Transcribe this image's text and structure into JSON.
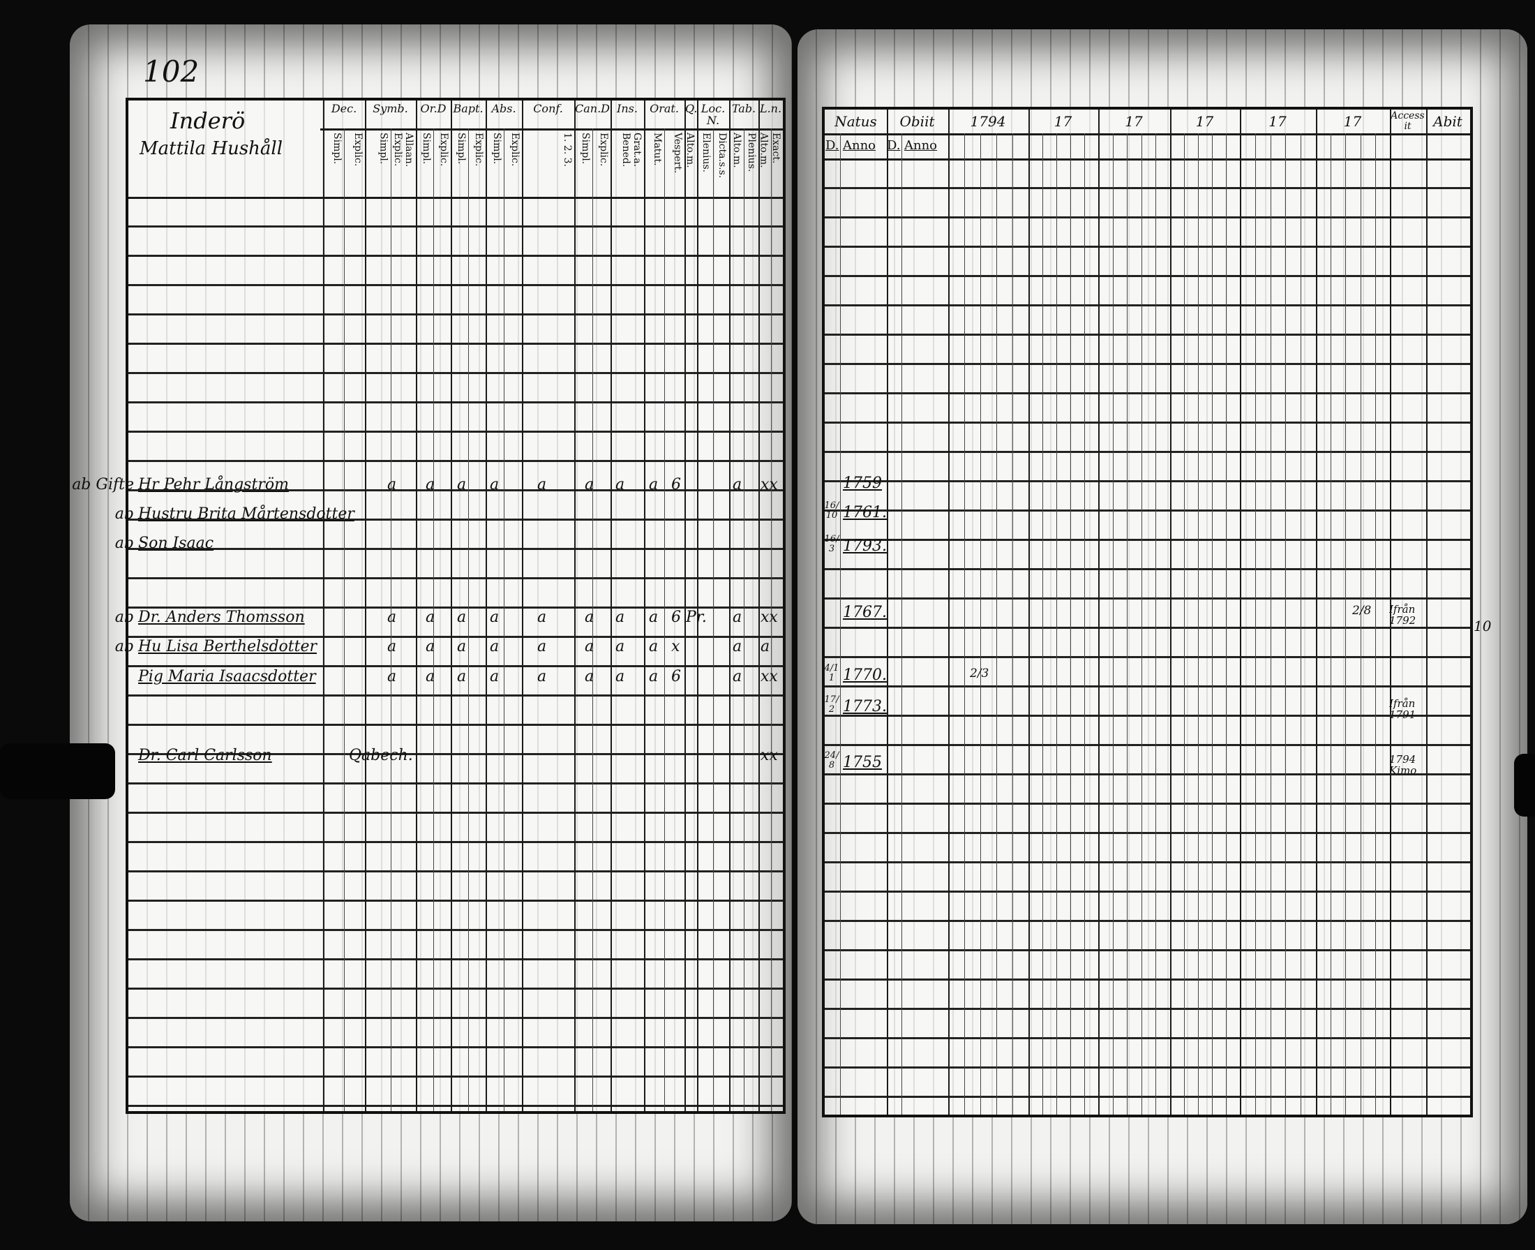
{
  "left_page": {
    "page_number": "102",
    "title_parish": "Inderö",
    "title_household": "Mattila Hushåll",
    "column_groups": [
      {
        "label": "Dec.",
        "subs": [
          "Simpl.",
          "Explic."
        ]
      },
      {
        "label": "Symb.",
        "subs": [
          "Simpl.",
          "Allaan. Explic."
        ]
      },
      {
        "label": "Or.D",
        "subs": [
          "Simpl.",
          "Explic."
        ]
      },
      {
        "label": "Bapt.",
        "subs": [
          "Simpl.",
          "Explic."
        ]
      },
      {
        "label": "Abs.",
        "subs": [
          "Simpl.",
          "Explic."
        ]
      },
      {
        "label": "Conf.",
        "subs": [
          "1. 2. 3."
        ]
      },
      {
        "label": "Can.D",
        "subs": [
          "Simpl.",
          "Explic."
        ]
      },
      {
        "label": "Ins.",
        "subs": [
          "Grat.a. Bened."
        ]
      },
      {
        "label": "Orat.",
        "subs": [
          "Matut.",
          "Vespert."
        ]
      },
      {
        "label": "Q.",
        "subs": [
          "Alto.m."
        ]
      },
      {
        "label": "Loc.N.",
        "subs": [
          "Elenius.",
          "Dicta.s.s."
        ]
      },
      {
        "label": "Tab.",
        "subs": [
          "Alto.m.",
          "Plenius."
        ]
      },
      {
        "label": "L.n.",
        "subs": [
          "Alto.m.",
          "Exact."
        ]
      }
    ],
    "entries": [
      {
        "margin": "ab Gifte",
        "name": "Hr Pehr Långström",
        "marks": [
          "a",
          "a",
          "a",
          "a",
          "a",
          "a",
          "a",
          "a",
          "6",
          "a",
          "xx"
        ]
      },
      {
        "margin": "ab",
        "name": "Hustru Brita Mårtensdotter",
        "marks": []
      },
      {
        "margin": "ab",
        "name": "Son Isaac",
        "marks": []
      },
      {
        "margin": "ab",
        "name": "Dr. Anders Thomsson",
        "marks": [
          "a",
          "a",
          "a",
          "a",
          "a",
          "a",
          "a",
          "a",
          "6 Pr.",
          "a",
          "xx"
        ]
      },
      {
        "margin": "ab",
        "name": "Hu Lisa Berthelsdotter",
        "marks": [
          "a",
          "a",
          "a",
          "a",
          "a",
          "a",
          "a",
          "a",
          "x",
          "a",
          "a"
        ]
      },
      {
        "margin": "",
        "name": "Pig Maria Isaacsdotter",
        "marks": [
          "a",
          "a",
          "a",
          "a",
          "a",
          "a",
          "a",
          "a",
          "6",
          "a",
          "xx"
        ]
      },
      {
        "margin": "",
        "name": "Dr. Carl Carlsson",
        "note": "Qabech.",
        "marks": [
          "",
          "",
          "",
          "",
          "",
          "",
          "",
          "",
          "",
          "",
          "xx"
        ]
      }
    ]
  },
  "right_page": {
    "column_groups": [
      "Natus",
      "Obiit",
      "1794",
      "17",
      "17",
      "17",
      "17",
      "17",
      "Accessit",
      "Abit"
    ],
    "sub_labels": {
      "natus_day": "D.",
      "natus_year": "Anno",
      "obiit_day": "D.",
      "obiit_year": "Anno"
    },
    "entries": [
      {
        "day": "",
        "year": "1759",
        "accessit": ""
      },
      {
        "day": "16/10",
        "year": "1761.",
        "accessit": ""
      },
      {
        "day": "16/3",
        "year": "1793.",
        "accessit": ""
      },
      {
        "day": "",
        "year": "1767.",
        "accessit": "Ifrån 1792",
        "extra": "2/8"
      },
      {
        "day": "4/11",
        "year": "1770.",
        "accessit": "",
        "extra": "2/3"
      },
      {
        "day": "17/2",
        "year": "1773.",
        "accessit": "Ifrån 1791"
      },
      {
        "day": "24/8",
        "year": "1755",
        "accessit": "1794 Kimo"
      }
    ],
    "margin_number": "10"
  }
}
